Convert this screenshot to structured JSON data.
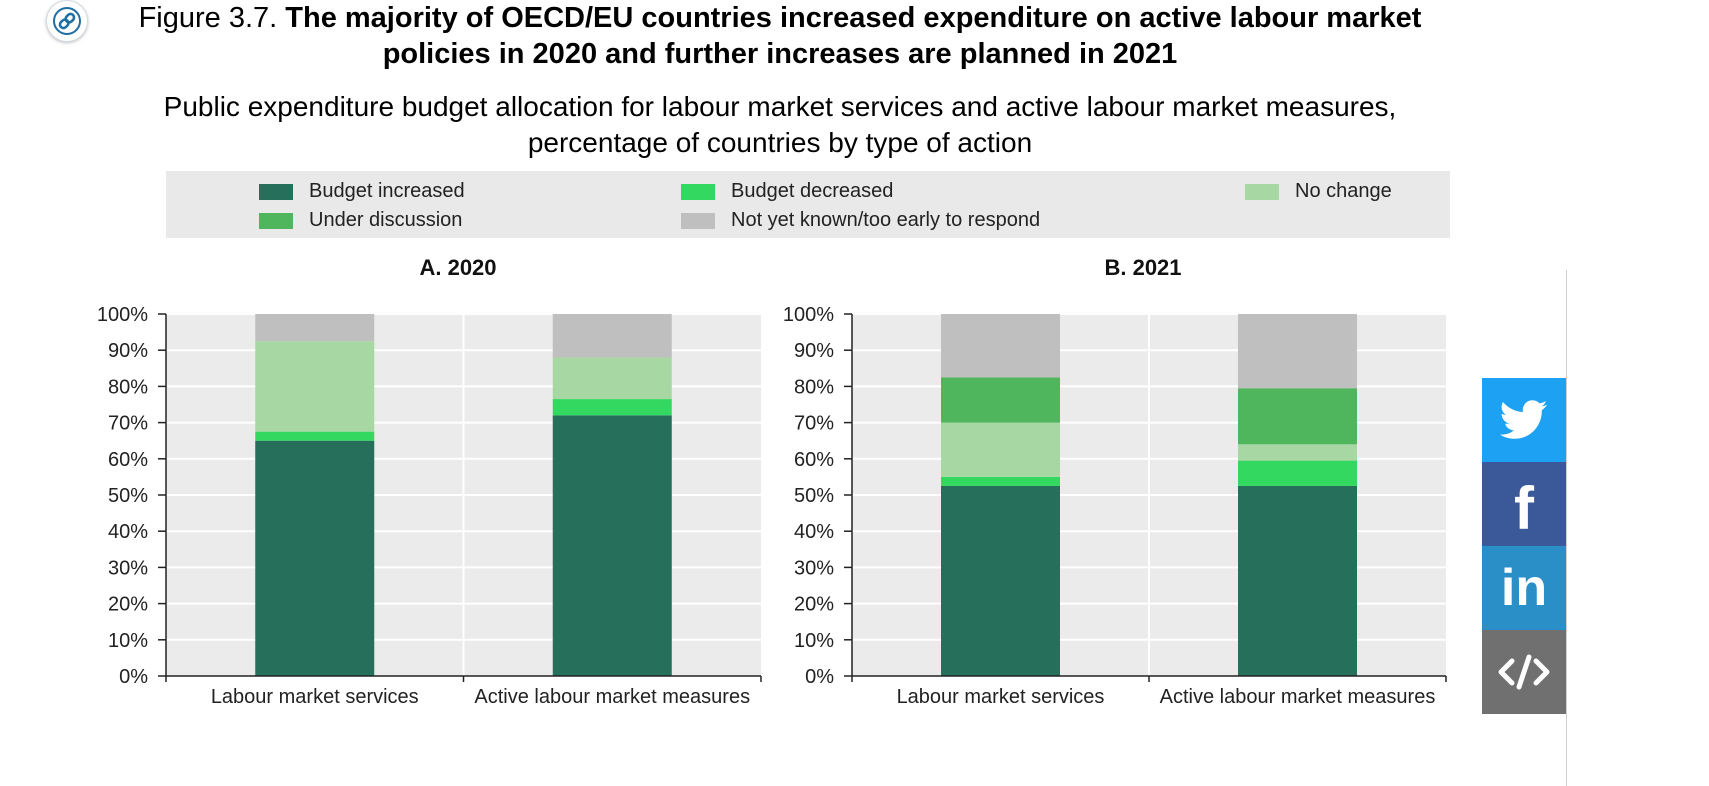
{
  "figure": {
    "number": "Figure 3.7.",
    "title": "The majority of OECD/EU countries increased expenditure on active labour market policies in 2020 and further increases are planned in 2021",
    "subtitle": "Public expenditure budget allocation for labour market services and active labour market measures, percentage of countries by type of action"
  },
  "icons": {
    "link": "link-icon",
    "twitter": "twitter-icon",
    "facebook": "facebook-icon",
    "linkedin": "linkedin-icon",
    "embed": "embed-code-icon"
  },
  "social": {
    "facebook_label": "f",
    "linkedin_label": "in",
    "colors": {
      "twitter": "#1da1f2",
      "facebook": "#3b5998",
      "linkedin": "#2a8ec7",
      "embed": "#707070"
    }
  },
  "chart_data": [
    {
      "type": "bar",
      "stacked": true,
      "title": "A. 2020",
      "categories": [
        "Labour market services",
        "Active labour market measures"
      ],
      "y_tick_labels": [
        "0%",
        "10%",
        "20%",
        "30%",
        "40%",
        "50%",
        "60%",
        "70%",
        "80%",
        "90%",
        "100%"
      ],
      "ylim": [
        0,
        100
      ],
      "grid": true,
      "legend_position": "top",
      "series": [
        {
          "name": "Budget increased",
          "color": "#256f5b",
          "values": [
            65,
            72
          ]
        },
        {
          "name": "Budget decreased",
          "color": "#33d860",
          "values": [
            2.5,
            4.5
          ]
        },
        {
          "name": "No change",
          "color": "#a7d7a2",
          "values": [
            25,
            11.5
          ]
        },
        {
          "name": "Under discussion",
          "color": "#4fb65d",
          "values": [
            0,
            0
          ]
        },
        {
          "name": "Not yet known/too early to respond",
          "color": "#bfbfbf",
          "values": [
            7.5,
            12
          ]
        }
      ]
    },
    {
      "type": "bar",
      "stacked": true,
      "title": "B. 2021",
      "categories": [
        "Labour market services",
        "Active labour market measures"
      ],
      "y_tick_labels": [
        "0%",
        "10%",
        "20%",
        "30%",
        "40%",
        "50%",
        "60%",
        "70%",
        "80%",
        "90%",
        "100%"
      ],
      "ylim": [
        0,
        100
      ],
      "grid": true,
      "legend_position": "top",
      "series": [
        {
          "name": "Budget increased",
          "color": "#256f5b",
          "values": [
            52.5,
            52.5
          ]
        },
        {
          "name": "Budget decreased",
          "color": "#33d860",
          "values": [
            2.5,
            7
          ]
        },
        {
          "name": "No change",
          "color": "#a7d7a2",
          "values": [
            15,
            4.5
          ]
        },
        {
          "name": "Under discussion",
          "color": "#4fb65d",
          "values": [
            12.5,
            15.5
          ]
        },
        {
          "name": "Not yet known/too early to respond",
          "color": "#bfbfbf",
          "values": [
            17.5,
            20.5
          ]
        }
      ]
    }
  ]
}
